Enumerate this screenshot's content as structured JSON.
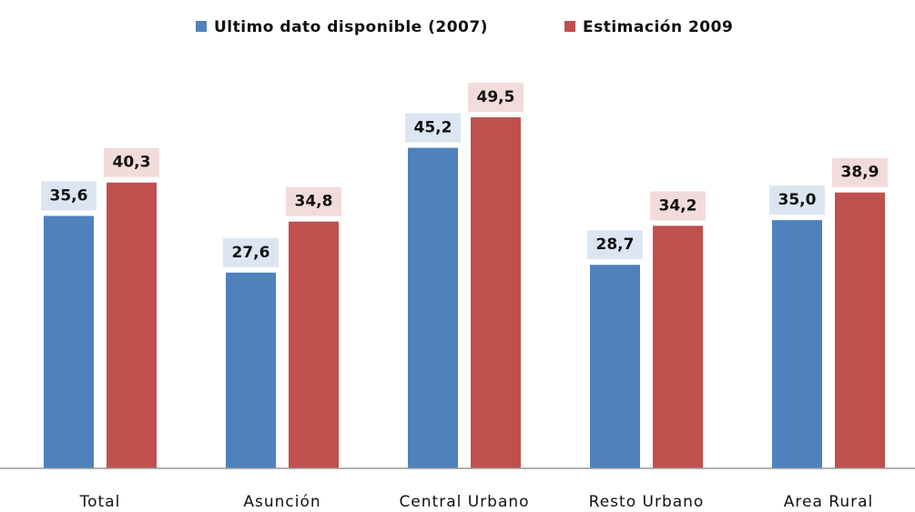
{
  "chart_data": {
    "type": "bar",
    "categories": [
      "Total",
      "Asunción",
      "Central Urbano",
      "Resto Urbano",
      "Area Rural"
    ],
    "series": [
      {
        "name": "Ultimo dato disponible (2007)",
        "color": "#4f81bd",
        "label_bg": "#dce6f2",
        "values": [
          35.6,
          27.6,
          45.2,
          28.7,
          35.0
        ],
        "value_labels": [
          "35,6",
          "27,6",
          "45,2",
          "28,7",
          "35,0"
        ]
      },
      {
        "name": "Estimación 2009",
        "color": "#c0504d",
        "label_bg": "#f2dcdb",
        "values": [
          40.3,
          34.8,
          49.5,
          34.2,
          38.9
        ],
        "value_labels": [
          "40,3",
          "34,8",
          "49,5",
          "34,2",
          "38,9"
        ]
      }
    ],
    "legend": "top"
  }
}
